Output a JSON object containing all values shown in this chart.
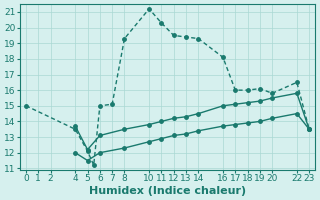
{
  "line1_x": [
    0,
    4,
    5,
    5.5,
    6,
    7,
    8,
    10,
    11,
    12,
    13,
    14,
    16,
    17,
    18,
    19,
    20,
    22,
    23
  ],
  "line1_y": [
    15.0,
    13.5,
    12.1,
    11.2,
    15.0,
    15.1,
    19.3,
    21.2,
    20.3,
    19.5,
    19.4,
    19.3,
    18.1,
    16.0,
    16.0,
    16.1,
    15.8,
    16.5,
    13.5
  ],
  "line2_x": [
    4,
    5,
    6,
    8,
    10,
    11,
    12,
    13,
    14,
    16,
    17,
    18,
    19,
    20,
    22,
    23
  ],
  "line2_y": [
    13.7,
    12.2,
    13.1,
    13.5,
    13.8,
    14.0,
    14.2,
    14.3,
    14.5,
    15.0,
    15.1,
    15.2,
    15.3,
    15.5,
    15.8,
    13.5
  ],
  "line3_x": [
    4,
    5,
    6,
    8,
    10,
    11,
    12,
    13,
    14,
    16,
    17,
    18,
    19,
    20,
    22,
    23
  ],
  "line3_y": [
    12.0,
    11.5,
    12.0,
    12.3,
    12.7,
    12.9,
    13.1,
    13.2,
    13.4,
    13.7,
    13.8,
    13.9,
    14.0,
    14.2,
    14.5,
    13.5
  ],
  "xlim": [
    -0.5,
    23.5
  ],
  "ylim": [
    11,
    21.5
  ],
  "yticks": [
    11,
    12,
    13,
    14,
    15,
    16,
    17,
    18,
    19,
    20,
    21
  ],
  "xticks": [
    0,
    1,
    2,
    4,
    5,
    6,
    7,
    8,
    10,
    11,
    12,
    13,
    14,
    16,
    17,
    18,
    19,
    20,
    22,
    23
  ],
  "xlabel": "Humidex (Indice chaleur)",
  "line_color": "#1a7a6e",
  "bg_color": "#d6f0ee",
  "grid_color": "#aad8d4",
  "tick_fontsize": 6.5,
  "xlabel_fontsize": 8
}
